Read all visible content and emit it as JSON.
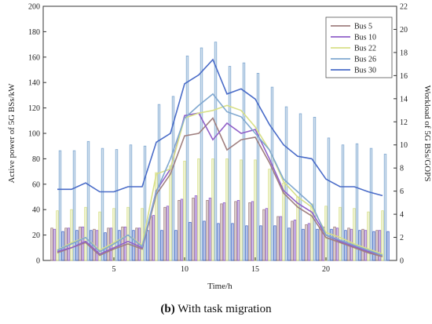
{
  "caption": {
    "letter": "(b)",
    "text": " With task migration"
  },
  "chart_data": {
    "type": "bar+line",
    "xlabel": "Time/h",
    "ylabel_left": "Active power of 5G BSs/kW",
    "ylabel_right": "Workload of 5G BSs/GOPS",
    "ylim_left": [
      0,
      200
    ],
    "ylim_right": [
      0,
      22
    ],
    "xlim": [
      0,
      25
    ],
    "x_ticks": [
      5,
      10,
      15,
      20
    ],
    "y_ticks_left": [
      0,
      20,
      40,
      60,
      80,
      100,
      120,
      140,
      160,
      180,
      200
    ],
    "y_ticks_right": [
      0,
      2,
      4,
      6,
      8,
      10,
      12,
      14,
      16,
      18,
      20,
      22
    ],
    "legend_position": "top-right",
    "hours": [
      1,
      2,
      3,
      4,
      5,
      6,
      7,
      8,
      9,
      10,
      11,
      12,
      13,
      14,
      15,
      16,
      17,
      18,
      19,
      20,
      21,
      22,
      23,
      24
    ],
    "series": [
      {
        "name": "Bus 5",
        "color": "#a08080",
        "power": [
          6,
          10,
          14,
          4,
          9,
          13,
          9,
          52,
          68,
          98,
          100,
          112,
          87,
          95,
          97,
          77,
          53,
          42,
          35,
          18,
          14,
          10,
          6,
          3
        ],
        "workload": [
          2.8,
          2.8,
          2.9,
          2.7,
          2.8,
          2.9,
          2.8,
          3.8,
          4.6,
          5.2,
          5.4,
          5.2,
          4.9,
          5.1,
          5.0,
          4.4,
          3.8,
          3.4,
          3.1,
          2.9,
          2.9,
          2.8,
          2.7,
          2.6
        ]
      },
      {
        "name": "Bus 10",
        "color": "#9060c8",
        "power": [
          7,
          10,
          15,
          5,
          10,
          15,
          10,
          55,
          72,
          114,
          116,
          95,
          108,
          100,
          103,
          80,
          55,
          45,
          38,
          20,
          15,
          11,
          7,
          4
        ],
        "workload": [
          2.7,
          2.8,
          2.9,
          2.6,
          2.8,
          2.9,
          2.8,
          3.9,
          4.7,
          5.3,
          5.6,
          5.4,
          5.0,
          5.2,
          5.1,
          4.5,
          3.8,
          3.5,
          3.2,
          2.9,
          2.8,
          2.7,
          2.6,
          2.6
        ]
      },
      {
        "name": "Bus 22",
        "color": "#d8e088",
        "power": [
          8,
          14,
          18,
          8,
          14,
          20,
          12,
          68,
          72,
          112,
          116,
          118,
          122,
          118,
          105,
          87,
          62,
          50,
          42,
          22,
          18,
          13,
          9,
          5
        ],
        "workload": [
          4.3,
          4.4,
          4.6,
          4.2,
          4.5,
          4.6,
          4.5,
          7.6,
          8.2,
          8.6,
          8.8,
          8.8,
          8.8,
          8.7,
          8.7,
          7.9,
          6.7,
          5.5,
          4.9,
          4.7,
          4.6,
          4.5,
          4.2,
          4.3
        ]
      },
      {
        "name": "Bus 26",
        "color": "#80a8d0",
        "power": [
          8,
          13,
          18,
          7,
          13,
          20,
          11,
          54,
          80,
          112,
          122,
          131,
          117,
          113,
          100,
          87,
          64,
          54,
          44,
          20,
          16,
          12,
          8,
          4
        ],
        "workload": [
          9.5,
          9.5,
          10.3,
          9.7,
          9.6,
          10.0,
          9.9,
          13.5,
          14.2,
          17.7,
          18.4,
          18.9,
          16.8,
          17.1,
          16.2,
          15.0,
          13.3,
          12.7,
          12.4,
          10.6,
          10.0,
          10.1,
          9.7,
          9.2
        ]
      },
      {
        "name": "Bus 30",
        "color": "#4a6cc8",
        "power": [
          56,
          56,
          61,
          54,
          54,
          58,
          58,
          93,
          100,
          139,
          146,
          158,
          131,
          135,
          127,
          107,
          91,
          82,
          80,
          64,
          58,
          58,
          54,
          51
        ],
        "workload": [
          2.5,
          2.6,
          2.6,
          2.4,
          2.6,
          2.6,
          2.6,
          2.6,
          2.6,
          3.3,
          3.4,
          3.2,
          3.2,
          3.0,
          3.0,
          3.0,
          2.8,
          2.7,
          2.7,
          2.7,
          2.6,
          2.6,
          2.5,
          2.5
        ]
      }
    ]
  }
}
